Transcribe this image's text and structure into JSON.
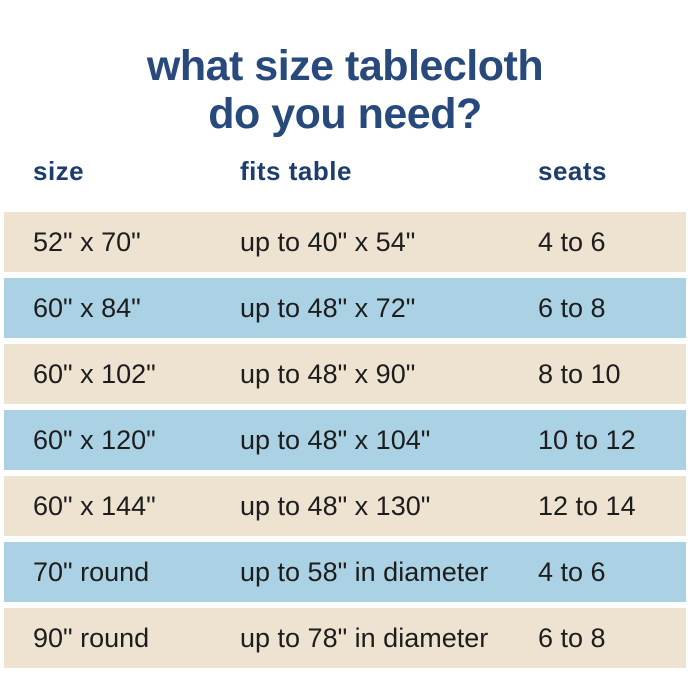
{
  "title": {
    "line1": "what size tablecloth",
    "line2": "do you need?"
  },
  "colors": {
    "title_navy": "#28497c",
    "header_navy": "#1d3e6c",
    "row_cream": "#ede3d0",
    "row_blue": "#abd2e4",
    "data_text": "#1d1d1d",
    "background": "#ffffff"
  },
  "chart_data": {
    "type": "table",
    "title": "what size tablecloth do you need?",
    "columns": [
      "size",
      "fits table",
      "seats"
    ],
    "rows": [
      [
        "52\" x 70\"",
        "up to 40\" x 54\"",
        "4 to 6"
      ],
      [
        "60\" x 84\"",
        "up to 48\" x 72\"",
        "6 to 8"
      ],
      [
        "60\" x 102\"",
        "up to 48\" x 90\"",
        "8 to 10"
      ],
      [
        "60\" x 120\"",
        "up to 48\" x 104\"",
        "10 to 12"
      ],
      [
        "60\" x 144\"",
        "up to 48\" x 130\"",
        "12 to 14"
      ],
      [
        "70\" round",
        "up to 58\" in diameter",
        "4 to 6"
      ],
      [
        "90\" round",
        "up to 78\" in diameter",
        "6 to 8"
      ]
    ],
    "layout": {
      "row_stripe_pattern": [
        "cream",
        "blue",
        "cream",
        "blue",
        "cream",
        "blue",
        "cream"
      ],
      "grid": "off",
      "legend": "none"
    }
  }
}
